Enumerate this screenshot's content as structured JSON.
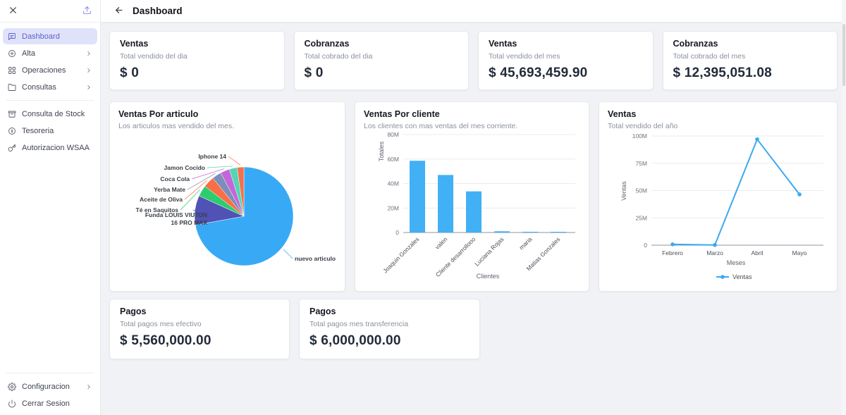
{
  "theme": {
    "accent": "#5c61cc",
    "accent_bg": "#e0e2fa",
    "chart_blue": "#3aa9f2"
  },
  "sidebar": {
    "items": [
      {
        "label": "Dashboard",
        "active": true
      },
      {
        "label": "Alta",
        "chevron": true
      },
      {
        "label": "Operaciones",
        "chevron": true
      },
      {
        "label": "Consultas",
        "chevron": true
      },
      {
        "label": "Consulta de Stock"
      },
      {
        "label": "Tesoreria"
      },
      {
        "label": "Autorizacion WSAA"
      }
    ],
    "footer_items": [
      {
        "label": "Configuracion",
        "chevron": true
      },
      {
        "label": "Cerrar Sesion"
      }
    ]
  },
  "header": {
    "title": "Dashboard"
  },
  "stat_cards": [
    {
      "title": "Ventas",
      "subtitle": "Total vendido del dia",
      "value": "$ 0"
    },
    {
      "title": "Cobranzas",
      "subtitle": "Total cobrado del dia",
      "value": "$ 0"
    },
    {
      "title": "Ventas",
      "subtitle": "Total vendido del mes",
      "value": "$ 45,693,459.90"
    },
    {
      "title": "Cobranzas",
      "subtitle": "Total cobrado del mes",
      "value": "$ 12,395,051.08"
    }
  ],
  "bottom_cards": [
    {
      "title": "Pagos",
      "subtitle": "Total pagos mes efectivo",
      "value": "$ 5,560,000.00"
    },
    {
      "title": "Pagos",
      "subtitle": "Total pagos mes transferencia",
      "value": "$ 6,000,000.00"
    }
  ],
  "chart_data": [
    {
      "type": "pie",
      "title": "Ventas Por articulo",
      "subtitle": "Los articulos mas vendido del mes.",
      "labels": [
        "nuevo articulo",
        "Funda LOUIS VIUTON 16 PRO MAX",
        "Té en Saquitos",
        "Aceite de Oliva",
        "Yerba Mate",
        "Coca Cola",
        "Jamon Cocido",
        "Iphone 14"
      ],
      "values_percent": [
        71,
        9.5,
        3.6,
        3.6,
        3,
        3,
        2.5,
        2.2
      ],
      "colors": [
        "#38aaf5",
        "#5052b5",
        "#2ecc71",
        "#fa6e45",
        "#7d8eba",
        "#c466d9",
        "#52d6b4",
        "#f2714e"
      ]
    },
    {
      "type": "bar",
      "title": "Ventas Por cliente",
      "subtitle": "Los clientes con mas ventas del mes corriente.",
      "categories": [
        "Joaquin Gonzales",
        "valen",
        "Cliente desarrollooo",
        "Luciana Rojas",
        "maria",
        "Matias Gonzales"
      ],
      "values_millions": [
        58.6,
        47,
        33.6,
        1,
        0.6,
        0.2
      ],
      "xlabel": "Clientes",
      "ylabel": "Totales",
      "yticks": [
        "80M",
        "60M",
        "40M",
        "20M",
        "0"
      ],
      "ymax_millions": 80,
      "bar_color": "#41b0f5",
      "grid": true,
      "legend_position": "none"
    },
    {
      "type": "line",
      "title": "Ventas",
      "subtitle": "Total vendido del año",
      "x": [
        "Febrero",
        "Marzo",
        "Abril",
        "Mayo"
      ],
      "values_millions": [
        0.8,
        0.2,
        97,
        46.5
      ],
      "xlabel": "Meses",
      "ylabel": "Ventas",
      "yticks": [
        "100M",
        "75M",
        "50M",
        "25M",
        "0"
      ],
      "ymax_millions": 100,
      "line_color": "#3aa9f2",
      "legend": "Ventas",
      "grid": true,
      "legend_position": "bottom"
    }
  ]
}
